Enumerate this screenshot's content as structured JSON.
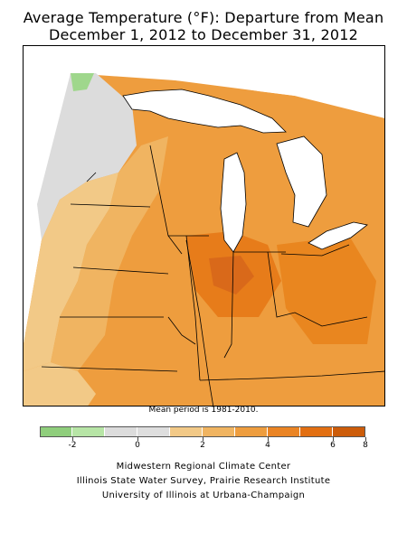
{
  "title": {
    "line1": "Average Temperature (°F): Departure from Mean",
    "line2": "December 1, 2012 to December 31, 2012"
  },
  "note": "Mean period is 1981-2010.",
  "legend": {
    "colors": [
      "#8fce7c",
      "#b7e5a6",
      "#dcdcdc",
      "#dedede",
      "#f2c987",
      "#f0b461",
      "#ee9d3e",
      "#ea8424",
      "#e26f12",
      "#cc5c0a"
    ],
    "ticks": [
      {
        "index": 1,
        "label": "-2"
      },
      {
        "index": 3,
        "label": "0"
      },
      {
        "index": 5,
        "label": "2"
      },
      {
        "index": 7,
        "label": "4"
      },
      {
        "index": 9,
        "label": "6"
      },
      {
        "index": 10,
        "label": "8"
      }
    ]
  },
  "credits": [
    "Midwestern Regional Climate Center",
    "Illinois State Water Survey, Prairie Research Institute",
    "University of Illinois at Urbana-Champaign"
  ]
}
